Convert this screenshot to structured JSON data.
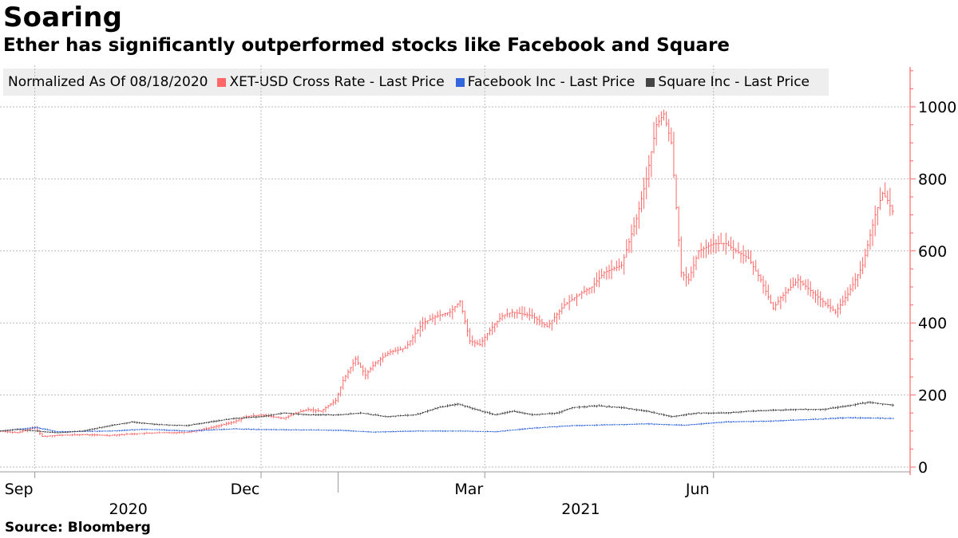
{
  "header": {
    "title": "Soaring",
    "subtitle": "Ether has significantly outperformed stocks like Facebook and Square"
  },
  "legend": {
    "note": "Normalized As Of 08/18/2020",
    "items": [
      {
        "label": "XET-USD Cross Rate - Last Price",
        "color": "#ff6666"
      },
      {
        "label": "Facebook Inc - Last Price",
        "color": "#3366dd"
      },
      {
        "label": "Square Inc - Last Price",
        "color": "#444444"
      }
    ]
  },
  "footer": {
    "source": "Source:  Bloomberg"
  },
  "chart_data": {
    "type": "line",
    "x_range": [
      "2020-08-18",
      "2021-08-12"
    ],
    "ylim": [
      0,
      1000
    ],
    "yticks": [
      0,
      200,
      400,
      600,
      800,
      1000
    ],
    "y_axis_position": "right",
    "grid": true,
    "x_month_ticks": [
      {
        "label": "Sep",
        "date": "2020-09-01"
      },
      {
        "label": "Dec",
        "date": "2020-12-01"
      },
      {
        "label": "Mar",
        "date": "2021-03-01"
      },
      {
        "label": "Jun",
        "date": "2021-06-01"
      }
    ],
    "x_year_labels": [
      {
        "label": "2020",
        "date": "2020-10-15"
      },
      {
        "label": "2021",
        "date": "2021-04-15"
      }
    ],
    "x_year_boundaries": [
      "2021-01-01"
    ],
    "series": [
      {
        "name": "XET-USD Cross Rate - Last Price",
        "color": "#ff6666",
        "style": "ohlc",
        "points": [
          [
            "2020-08-18",
            100
          ],
          [
            "2020-08-25",
            95
          ],
          [
            "2020-09-01",
            110
          ],
          [
            "2020-09-04",
            85
          ],
          [
            "2020-09-10",
            88
          ],
          [
            "2020-09-20",
            90
          ],
          [
            "2020-10-01",
            88
          ],
          [
            "2020-10-10",
            92
          ],
          [
            "2020-10-20",
            95
          ],
          [
            "2020-11-01",
            96
          ],
          [
            "2020-11-10",
            108
          ],
          [
            "2020-11-20",
            125
          ],
          [
            "2020-11-25",
            140
          ],
          [
            "2020-12-01",
            145
          ],
          [
            "2020-12-10",
            135
          ],
          [
            "2020-12-15",
            150
          ],
          [
            "2020-12-20",
            160
          ],
          [
            "2020-12-25",
            155
          ],
          [
            "2020-12-31",
            185
          ],
          [
            "2021-01-03",
            240
          ],
          [
            "2021-01-08",
            300
          ],
          [
            "2021-01-12",
            255
          ],
          [
            "2021-01-16",
            290
          ],
          [
            "2021-01-22",
            320
          ],
          [
            "2021-01-28",
            330
          ],
          [
            "2021-02-04",
            400
          ],
          [
            "2021-02-10",
            420
          ],
          [
            "2021-02-15",
            430
          ],
          [
            "2021-02-19,",
            460
          ],
          [
            "2021-02-23",
            350
          ],
          [
            "2021-02-27",
            340
          ],
          [
            "2021-03-03",
            380
          ],
          [
            "2021-03-08",
            420
          ],
          [
            "2021-03-12",
            430
          ],
          [
            "2021-03-20",
            420
          ],
          [
            "2021-03-26",
            390
          ],
          [
            "2021-04-02",
            450
          ],
          [
            "2021-04-08",
            480
          ],
          [
            "2021-04-13",
            500
          ],
          [
            "2021-04-18",
            540
          ],
          [
            "2021-04-25",
            560
          ],
          [
            "2021-05-01",
            690
          ],
          [
            "2021-05-05",
            800
          ],
          [
            "2021-05-09",
            950
          ],
          [
            "2021-05-12",
            980
          ],
          [
            "2021-05-15",
            900
          ],
          [
            "2021-05-19",
            540
          ],
          [
            "2021-05-22",
            520
          ],
          [
            "2021-05-26",
            600
          ],
          [
            "2021-06-01",
            620
          ],
          [
            "2021-06-06",
            620
          ],
          [
            "2021-06-10",
            600
          ],
          [
            "2021-06-15",
            580
          ],
          [
            "2021-06-20",
            520
          ],
          [
            "2021-06-25",
            440
          ],
          [
            "2021-06-28",
            470
          ],
          [
            "2021-07-05",
            520
          ],
          [
            "2021-07-10",
            490
          ],
          [
            "2021-07-15",
            460
          ],
          [
            "2021-07-20",
            430
          ],
          [
            "2021-07-25",
            480
          ],
          [
            "2021-07-31",
            560
          ],
          [
            "2021-08-05",
            700
          ],
          [
            "2021-08-08",
            760
          ],
          [
            "2021-08-10",
            740
          ],
          [
            "2021-08-12",
            710
          ]
        ]
      },
      {
        "name": "Facebook Inc - Last Price",
        "color": "#3366dd",
        "style": "ohlc",
        "points": [
          [
            "2020-08-18",
            100
          ],
          [
            "2020-08-25",
            105
          ],
          [
            "2020-09-01",
            110
          ],
          [
            "2020-09-10",
            98
          ],
          [
            "2020-10-01",
            100
          ],
          [
            "2020-10-15",
            105
          ],
          [
            "2020-11-01",
            100
          ],
          [
            "2020-11-20",
            106
          ],
          [
            "2020-12-01",
            104
          ],
          [
            "2020-12-20",
            103
          ],
          [
            "2021-01-01",
            102
          ],
          [
            "2021-01-15",
            97
          ],
          [
            "2021-02-01",
            100
          ],
          [
            "2021-02-20",
            100
          ],
          [
            "2021-03-05",
            98
          ],
          [
            "2021-03-20",
            108
          ],
          [
            "2021-04-05",
            115
          ],
          [
            "2021-04-25",
            118
          ],
          [
            "2021-05-05",
            120
          ],
          [
            "2021-05-20",
            116
          ],
          [
            "2021-06-05",
            125
          ],
          [
            "2021-06-25",
            128
          ],
          [
            "2021-07-10",
            132
          ],
          [
            "2021-07-25",
            137
          ],
          [
            "2021-08-12",
            135
          ]
        ]
      },
      {
        "name": "Square Inc - Last Price",
        "color": "#444444",
        "style": "ohlc",
        "points": [
          [
            "2020-08-18",
            100
          ],
          [
            "2020-08-25",
            105
          ],
          [
            "2020-09-01",
            100
          ],
          [
            "2020-09-10",
            95
          ],
          [
            "2020-09-20",
            100
          ],
          [
            "2020-10-01",
            115
          ],
          [
            "2020-10-10",
            125
          ],
          [
            "2020-10-20",
            118
          ],
          [
            "2020-11-01",
            115
          ],
          [
            "2020-11-10",
            125
          ],
          [
            "2020-11-20",
            135
          ],
          [
            "2020-12-01",
            140
          ],
          [
            "2020-12-10",
            150
          ],
          [
            "2020-12-20",
            145
          ],
          [
            "2021-01-01",
            145
          ],
          [
            "2021-01-10",
            150
          ],
          [
            "2021-01-20",
            140
          ],
          [
            "2021-02-01",
            145
          ],
          [
            "2021-02-10",
            165
          ],
          [
            "2021-02-18",
            175
          ],
          [
            "2021-02-25",
            160
          ],
          [
            "2021-03-05",
            145
          ],
          [
            "2021-03-12",
            155
          ],
          [
            "2021-03-20",
            145
          ],
          [
            "2021-03-30",
            150
          ],
          [
            "2021-04-05",
            165
          ],
          [
            "2021-04-15",
            170
          ],
          [
            "2021-04-25",
            165
          ],
          [
            "2021-05-05",
            155
          ],
          [
            "2021-05-15",
            140
          ],
          [
            "2021-05-25",
            150
          ],
          [
            "2021-06-05",
            150
          ],
          [
            "2021-06-15",
            155
          ],
          [
            "2021-06-25",
            158
          ],
          [
            "2021-07-05",
            160
          ],
          [
            "2021-07-15",
            160
          ],
          [
            "2021-07-25",
            170
          ],
          [
            "2021-08-02",
            180
          ],
          [
            "2021-08-08",
            175
          ],
          [
            "2021-08-12",
            172
          ]
        ]
      }
    ]
  }
}
